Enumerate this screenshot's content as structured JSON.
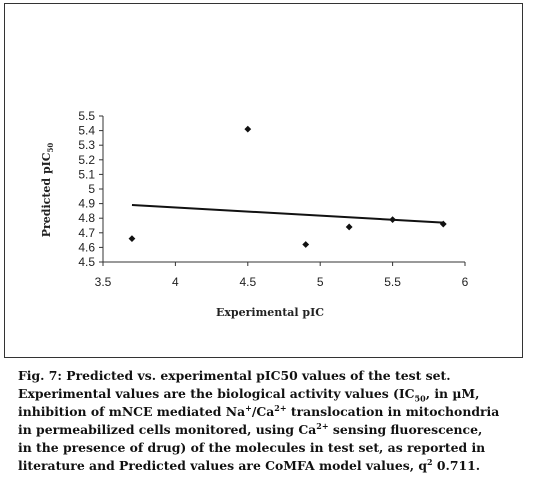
{
  "chart_data": {
    "type": "scatter",
    "title": "",
    "xlabel": "Experimental pIC",
    "ylabel": "Predicted pIC",
    "ylabel_sub": "50",
    "xlim": [
      3.5,
      6
    ],
    "ylim": [
      4.5,
      5.5
    ],
    "x_ticks": [
      "3.5",
      "4",
      "4.5",
      "5",
      "5.5",
      "6"
    ],
    "y_ticks": [
      "4.5",
      "4.6",
      "4.7",
      "4.8",
      "4.9",
      "5",
      "5.1",
      "5.2",
      "5.3",
      "5.4",
      "5.5"
    ],
    "points": [
      {
        "x": 3.7,
        "y": 4.66
      },
      {
        "x": 4.5,
        "y": 5.41
      },
      {
        "x": 4.9,
        "y": 4.62
      },
      {
        "x": 5.2,
        "y": 4.74
      },
      {
        "x": 5.5,
        "y": 4.79
      },
      {
        "x": 5.85,
        "y": 4.76
      }
    ],
    "trendline": {
      "x": [
        3.7,
        5.85
      ],
      "y": [
        4.89,
        4.77
      ]
    },
    "grid": false,
    "legend": "none",
    "colors": {
      "marker": "#111111",
      "line": "#111111"
    }
  },
  "caption": {
    "line1": "Fig. 7: Predicted vs. experimental pIC50 values of the test set.",
    "line2_a": "Experimental values are the biological activity values (IC",
    "line2_sub": "50",
    "line2_b": ", in µM,",
    "line3_a": "inhibition of mNCE mediated Na",
    "line3_sup1": "+",
    "line3_b": "/Ca",
    "line3_sup2": "2+",
    "line3_c": " translocation in mitochondria",
    "line4_a": "in permeabilized cells monitored, using Ca",
    "line4_sup": "2+",
    "line4_b": " sensing fluorescence,",
    "line5": "in the presence of drug) of the molecules in test set, as reported in",
    "line6_a": "literature and Predicted values are CoMFA model values, q",
    "line6_sup": "2",
    "line6_b": " 0.711."
  }
}
